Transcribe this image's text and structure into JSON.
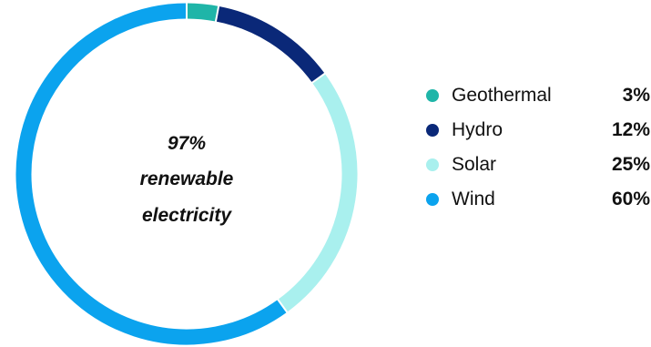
{
  "chart_data": {
    "type": "pie",
    "variant": "donut",
    "center_text": [
      "97%",
      "renewable",
      "electricity"
    ],
    "categories": [
      "Geothermal",
      "Hydro",
      "Solar",
      "Wind"
    ],
    "values": [
      3,
      12,
      25,
      60
    ],
    "value_labels": [
      "3%",
      "12%",
      "25%",
      "60%"
    ],
    "colors": [
      "#1fb5a8",
      "#0a2878",
      "#a9f0ee",
      "#0ba3ee"
    ],
    "legend_placement": "right"
  }
}
